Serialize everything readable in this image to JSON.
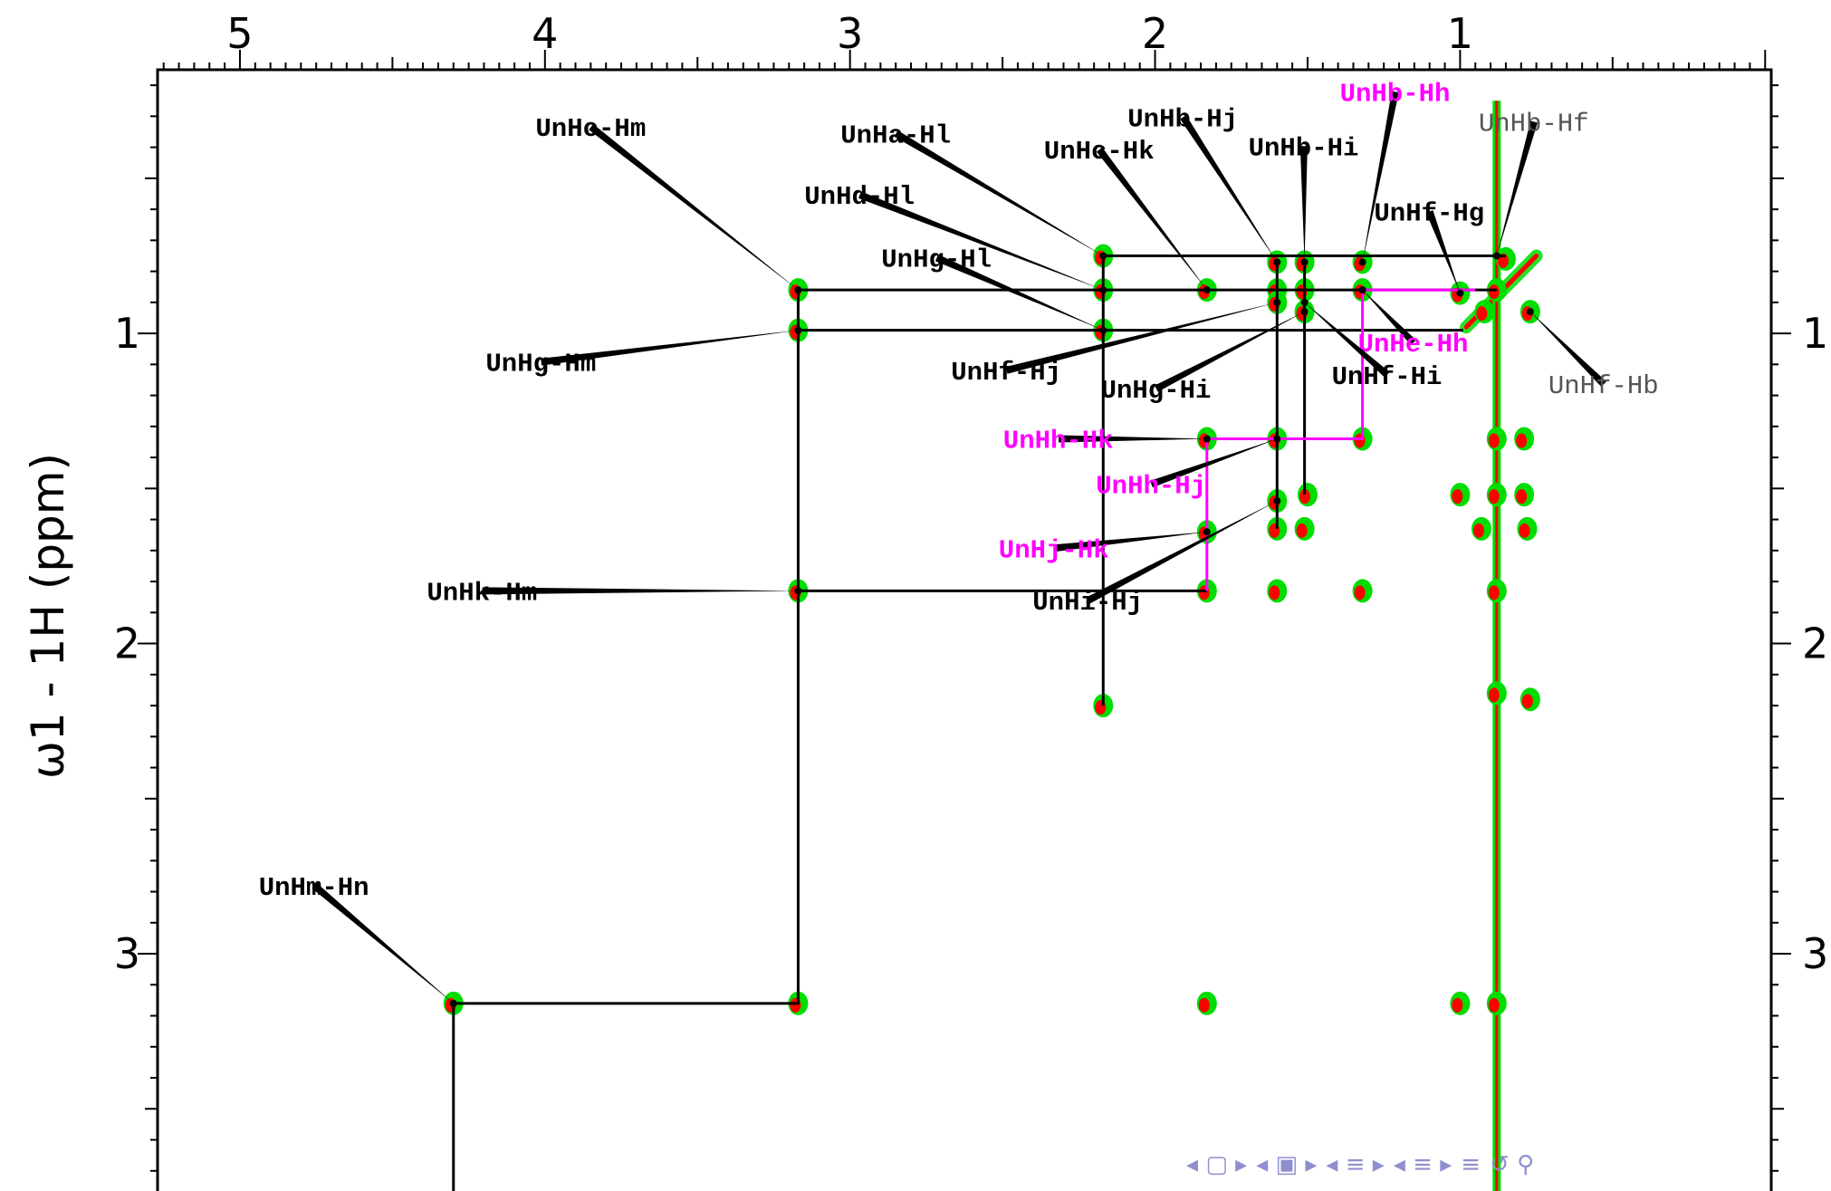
{
  "chart_data": {
    "type": "scatter",
    "title": "",
    "xlabel": "",
    "ylabel": "ω1 - 1H (ppm)",
    "xlim": [
      5.27,
      -0.02
    ],
    "ylim": [
      0.15,
      3.8
    ],
    "x_ticks": [
      "5",
      "4",
      "3",
      "2",
      "1"
    ],
    "x_tick_values": [
      5,
      4,
      3,
      2,
      1
    ],
    "y_ticks": [
      "1",
      "2",
      "3"
    ],
    "y_tick_values": [
      1,
      2,
      3
    ],
    "y_ticks_right": [
      "1",
      "2",
      "3"
    ],
    "grid": false,
    "colors": {
      "contour_positive": "#ff0000",
      "contour_negative": "#00dd00",
      "assignment": "#000000",
      "highlight": "#ff00ff",
      "nav": "#8f8fd0"
    },
    "peaks": [
      [
        2.17,
        0.75
      ],
      [
        1.6,
        0.77
      ],
      [
        1.51,
        0.77
      ],
      [
        1.32,
        0.77
      ],
      [
        0.85,
        0.76
      ],
      [
        3.17,
        0.86
      ],
      [
        2.17,
        0.86
      ],
      [
        1.83,
        0.86
      ],
      [
        1.6,
        0.86
      ],
      [
        1.51,
        0.86
      ],
      [
        1.32,
        0.86
      ],
      [
        1.0,
        0.87
      ],
      [
        0.88,
        0.86
      ],
      [
        3.17,
        0.99
      ],
      [
        2.17,
        0.99
      ],
      [
        1.6,
        0.9
      ],
      [
        1.51,
        0.93
      ],
      [
        0.92,
        0.93
      ],
      [
        0.77,
        0.93
      ],
      [
        1.83,
        1.34
      ],
      [
        1.6,
        1.34
      ],
      [
        1.32,
        1.34
      ],
      [
        0.88,
        1.34
      ],
      [
        0.79,
        1.34
      ],
      [
        1.6,
        1.54
      ],
      [
        1.5,
        1.52
      ],
      [
        1.0,
        1.52
      ],
      [
        0.88,
        1.52
      ],
      [
        0.79,
        1.52
      ],
      [
        1.83,
        1.64
      ],
      [
        1.6,
        1.63
      ],
      [
        1.51,
        1.63
      ],
      [
        0.93,
        1.63
      ],
      [
        0.78,
        1.63
      ],
      [
        3.17,
        1.83
      ],
      [
        1.83,
        1.83
      ],
      [
        1.6,
        1.83
      ],
      [
        1.32,
        1.83
      ],
      [
        0.88,
        1.83
      ],
      [
        2.17,
        2.2
      ],
      [
        0.88,
        2.16
      ],
      [
        0.77,
        2.18
      ],
      [
        3.17,
        3.16
      ],
      [
        4.3,
        3.16
      ],
      [
        1.83,
        3.16
      ],
      [
        1.0,
        3.16
      ],
      [
        0.88,
        3.16
      ]
    ],
    "assignment_paths": [
      {
        "color": "black",
        "points": [
          [
            4.3,
            3.8
          ],
          [
            4.3,
            3.16
          ],
          [
            3.17,
            3.16
          ],
          [
            3.17,
            0.86
          ],
          [
            0.88,
            0.86
          ]
        ]
      },
      {
        "color": "black",
        "points": [
          [
            3.17,
            1.83
          ],
          [
            1.83,
            1.83
          ]
        ]
      },
      {
        "color": "black",
        "points": [
          [
            3.17,
            0.99
          ],
          [
            0.99,
            0.99
          ]
        ]
      },
      {
        "color": "black",
        "points": [
          [
            2.17,
            2.2
          ],
          [
            2.17,
            0.75
          ],
          [
            0.85,
            0.75
          ]
        ]
      },
      {
        "color": "black",
        "points": [
          [
            1.6,
            1.63
          ],
          [
            1.6,
            0.77
          ]
        ]
      },
      {
        "color": "black",
        "points": [
          [
            1.51,
            1.52
          ],
          [
            1.51,
            0.77
          ]
        ]
      },
      {
        "color": "magenta",
        "points": [
          [
            1.83,
            1.83
          ],
          [
            1.83,
            1.34
          ],
          [
            1.32,
            1.34
          ],
          [
            1.32,
            0.86
          ],
          [
            0.95,
            0.86
          ]
        ]
      }
    ],
    "annotations": [
      {
        "text": "UnHc-Hm",
        "color": "black",
        "style": "bold",
        "target": [
          3.17,
          0.86
        ]
      },
      {
        "text": "UnHa-Hl",
        "color": "black",
        "style": "bold",
        "target": [
          2.17,
          0.75
        ]
      },
      {
        "text": "UnHd-Hl",
        "color": "black",
        "style": "bold",
        "target": [
          2.17,
          0.86
        ]
      },
      {
        "text": "UnHg-Hl",
        "color": "black",
        "style": "bold",
        "target": [
          2.17,
          0.99
        ]
      },
      {
        "text": "UnHc-Hk",
        "color": "black",
        "style": "bold",
        "target": [
          1.83,
          0.86
        ]
      },
      {
        "text": "UnHb-Hj",
        "color": "black",
        "style": "bold",
        "target": [
          1.6,
          0.77
        ]
      },
      {
        "text": "UnHb-Hi",
        "color": "black",
        "style": "bold",
        "target": [
          1.51,
          0.77
        ]
      },
      {
        "text": "UnHb-Hh",
        "color": "magenta",
        "style": "bold",
        "target": [
          1.32,
          0.77
        ]
      },
      {
        "text": "UnHb-Hf",
        "color": "black",
        "style": "light",
        "target": [
          0.88,
          0.75
        ]
      },
      {
        "text": "UnHf-Hg",
        "color": "black",
        "style": "bold",
        "target": [
          1.0,
          0.87
        ]
      },
      {
        "text": "UnHg-Hm",
        "color": "black",
        "style": "bold",
        "target": [
          3.17,
          0.99
        ]
      },
      {
        "text": "UnHf-Hj",
        "color": "black",
        "style": "bold",
        "target": [
          1.6,
          0.9
        ]
      },
      {
        "text": "UnHg-Hi",
        "color": "black",
        "style": "bold",
        "target": [
          1.51,
          0.93
        ]
      },
      {
        "text": "UnHe-Hh",
        "color": "magenta",
        "style": "bold",
        "target": [
          1.32,
          0.86
        ]
      },
      {
        "text": "UnHf-Hi",
        "color": "black",
        "style": "bold",
        "target": [
          1.51,
          0.9
        ]
      },
      {
        "text": "UnHf-Hb",
        "color": "black",
        "style": "light",
        "target": [
          0.77,
          0.93
        ]
      },
      {
        "text": "UnHh-Hk",
        "color": "magenta",
        "style": "bold",
        "target": [
          1.83,
          1.34
        ]
      },
      {
        "text": "UnHh-Hj",
        "color": "magenta",
        "style": "bold",
        "target": [
          1.6,
          1.34
        ]
      },
      {
        "text": "UnHj-Hk",
        "color": "magenta",
        "style": "bold",
        "target": [
          1.83,
          1.64
        ]
      },
      {
        "text": "UnHk-Hm",
        "color": "black",
        "style": "bold",
        "target": [
          3.17,
          1.83
        ]
      },
      {
        "text": "UnHi-Hj",
        "color": "black",
        "style": "bold",
        "target": [
          1.6,
          1.54
        ]
      },
      {
        "text": "UnHm-Hn",
        "color": "black",
        "style": "bold",
        "target": [
          4.3,
          3.16
        ]
      }
    ]
  }
}
